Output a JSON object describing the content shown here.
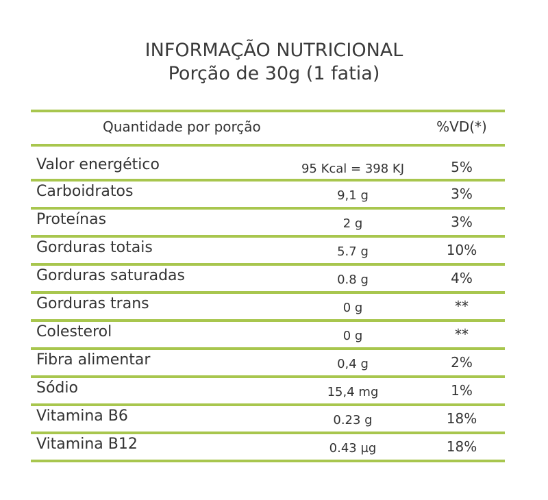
{
  "title": {
    "line1": "INFORMAÇÃO NUTRICIONAL",
    "line2": "Porção de 30g (1 fatia)"
  },
  "header": {
    "quantity_label": "Quantidade por porção",
    "vd_label": "%VD(*)"
  },
  "colors": {
    "rule": "#a8c64e",
    "text": "#333333"
  },
  "rows": [
    {
      "name": "Valor energético",
      "amount": "95 Kcal = 398 KJ",
      "vd": "5%"
    },
    {
      "name": "Carboidratos",
      "amount": "9,1 g",
      "vd": "3%"
    },
    {
      "name": "Proteínas",
      "amount": "2 g",
      "vd": "3%"
    },
    {
      "name": "Gorduras totais",
      "amount": "5.7 g",
      "vd": "10%"
    },
    {
      "name": "Gorduras saturadas",
      "amount": "0.8 g",
      "vd": "4%"
    },
    {
      "name": "Gorduras trans",
      "amount": "0 g",
      "vd": "**"
    },
    {
      "name": "Colesterol",
      "amount": "0 g",
      "vd": "**"
    },
    {
      "name": "Fibra alimentar",
      "amount": "0,4 g",
      "vd": "2%"
    },
    {
      "name": "Sódio",
      "amount": "15,4 mg",
      "vd": "1%"
    },
    {
      "name": "Vitamina B6",
      "amount": "0.23 g",
      "vd": "18%"
    },
    {
      "name": "Vitamina B12",
      "amount": "0.43 µg",
      "vd": "18%"
    }
  ]
}
